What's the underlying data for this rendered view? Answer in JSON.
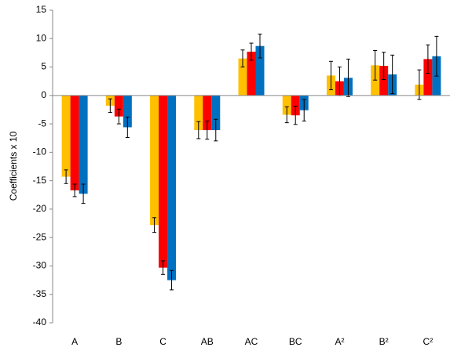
{
  "chart_data": {
    "type": "bar",
    "y_label": "Coefficients  x 10",
    "categories": [
      "A",
      "B",
      "C",
      "AB",
      "AC",
      "BC",
      "A²",
      "B²",
      "C²"
    ],
    "series": [
      {
        "color": "#ffc000",
        "values": [
          -14.3,
          -1.8,
          -22.8,
          -6.1,
          6.5,
          -3.4,
          3.5,
          5.3,
          1.9
        ],
        "errors": [
          1.2,
          1.2,
          1.3,
          1.5,
          1.5,
          1.4,
          2.5,
          2.6,
          2.6
        ]
      },
      {
        "color": "#ff0000",
        "values": [
          -16.7,
          -3.7,
          -30.3,
          -6.1,
          7.7,
          -3.5,
          2.5,
          5.2,
          6.4
        ],
        "errors": [
          1.1,
          1.3,
          1.2,
          1.6,
          1.5,
          1.6,
          2.5,
          2.4,
          2.5
        ]
      },
      {
        "color": "#0070c0",
        "values": [
          -17.3,
          -5.6,
          -32.5,
          -6.1,
          8.7,
          -2.6,
          3.1,
          3.7,
          6.9
        ],
        "errors": [
          1.7,
          1.8,
          1.7,
          1.9,
          2.1,
          1.9,
          3.3,
          3.4,
          3.5
        ]
      }
    ],
    "ylim": [
      -40,
      15
    ],
    "yticks": [
      -40,
      -35,
      -30,
      -25,
      -20,
      -15,
      -10,
      -5,
      0,
      5,
      10,
      15
    ],
    "grid": false
  }
}
